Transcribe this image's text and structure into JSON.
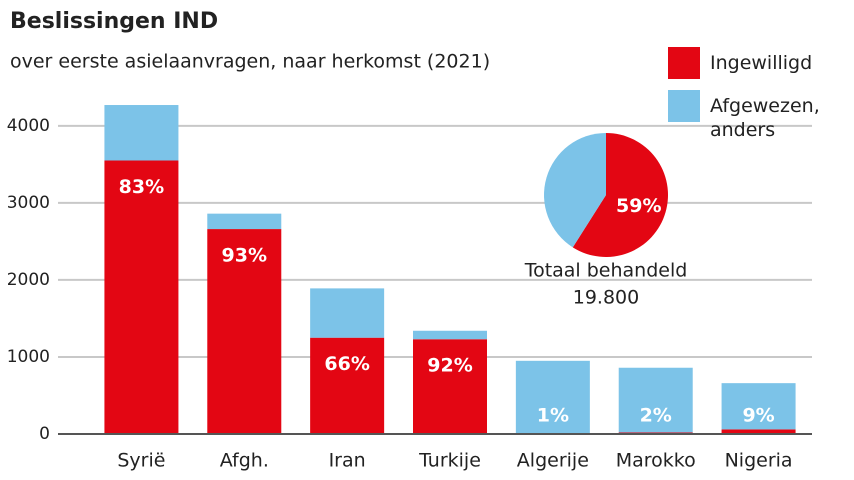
{
  "chart_data": [
    {
      "type": "bar",
      "stacked": true,
      "title": "Beslissingen IND",
      "subtitle": "over eerste asielaanvragen, naar herkomst (2021)",
      "categories": [
        "Syrië",
        "Afgh.",
        "Iran",
        "Turkije",
        "Algerije",
        "Marokko",
        "Nigeria"
      ],
      "series": [
        {
          "name": "Ingewilligd",
          "color": "#e30613",
          "values": [
            3550,
            2660,
            1250,
            1230,
            10,
            20,
            60
          ]
        },
        {
          "name": "Afgewezen, anders",
          "color": "#7cc3e8",
          "values": [
            720,
            200,
            640,
            110,
            940,
            840,
            600
          ]
        }
      ],
      "shares": {
        "values": [
          83,
          93,
          66,
          92,
          1,
          2,
          9
        ],
        "value_labels": [
          "83%",
          "93%",
          "66%",
          "92%",
          "1%",
          "2%",
          "9%"
        ]
      },
      "ylim": [
        0,
        4400
      ],
      "yticks": [
        0,
        1000,
        2000,
        3000,
        4000
      ],
      "grid": true
    },
    {
      "type": "pie",
      "values": [
        59,
        41
      ],
      "colors": [
        "#e30613",
        "#7cc3e8"
      ],
      "value_labels": [
        "59%",
        null
      ],
      "caption": "Totaal behandeld",
      "total": {
        "value": 19800,
        "label": "19.800"
      }
    }
  ]
}
